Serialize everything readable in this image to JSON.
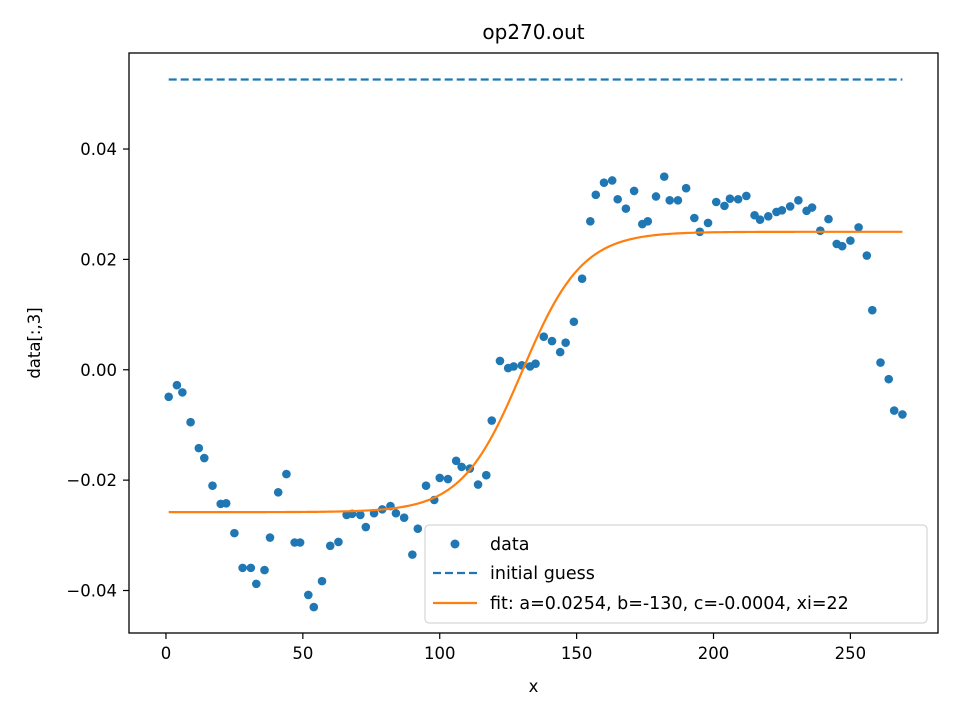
{
  "chart_data": {
    "type": "scatter",
    "title": "op270.out",
    "xlabel": "x",
    "ylabel": "data[:,3]",
    "xlim": [
      -13.5,
      282
    ],
    "ylim": [
      -0.0477,
      0.0574
    ],
    "xticks": [
      0,
      50,
      100,
      150,
      200,
      250
    ],
    "xtick_labels": [
      "0",
      "50",
      "100",
      "150",
      "200",
      "250"
    ],
    "yticks": [
      -0.04,
      -0.02,
      0.0,
      0.02,
      0.04
    ],
    "ytick_labels": [
      "−0.04",
      "−0.02",
      "0.00",
      "0.02",
      "0.04"
    ],
    "grid": false,
    "legend_position": "lower-right",
    "series": [
      {
        "name": "data",
        "kind": "scatter",
        "color": "#1f77b4",
        "x": [
          1,
          4,
          6,
          9,
          12,
          14,
          17,
          20,
          22,
          25,
          28,
          31,
          33,
          36,
          38,
          41,
          44,
          47,
          49,
          52,
          54,
          57,
          60,
          63,
          66,
          68,
          71,
          73,
          76,
          79,
          82,
          84,
          87,
          90,
          92,
          95,
          98,
          100,
          103,
          106,
          108,
          111,
          114,
          117,
          119,
          122,
          125,
          127,
          130,
          133,
          135,
          138,
          141,
          144,
          146,
          149,
          152,
          155,
          157,
          160,
          163,
          165,
          168,
          171,
          174,
          176,
          179,
          182,
          184,
          187,
          190,
          193,
          195,
          198,
          201,
          204,
          206,
          209,
          212,
          215,
          217,
          220,
          223,
          225,
          228,
          231,
          234,
          236,
          239,
          242,
          245,
          247,
          250,
          253,
          256,
          258,
          261,
          264,
          266,
          269
        ],
        "y": [
          -0.0049,
          -0.0028,
          -0.0041,
          -0.0095,
          -0.0142,
          -0.016,
          -0.021,
          -0.0243,
          -0.0242,
          -0.0296,
          -0.0359,
          -0.0359,
          -0.0388,
          -0.0363,
          -0.0304,
          -0.0222,
          -0.0189,
          -0.0313,
          -0.0313,
          -0.0408,
          -0.043,
          -0.0383,
          -0.0319,
          -0.0312,
          -0.0263,
          -0.0261,
          -0.0263,
          -0.0285,
          -0.026,
          -0.0253,
          -0.0247,
          -0.026,
          -0.0268,
          -0.0335,
          -0.0288,
          -0.021,
          -0.0236,
          -0.0196,
          -0.0198,
          -0.0165,
          -0.0176,
          -0.0179,
          -0.0208,
          -0.0191,
          -0.0092,
          0.0016,
          0.0003,
          0.0006,
          0.0008,
          0.0006,
          0.0011,
          0.006,
          0.0052,
          0.0032,
          0.0049,
          0.0087,
          0.0165,
          0.0269,
          0.0317,
          0.0339,
          0.0343,
          0.0309,
          0.0292,
          0.0324,
          0.0264,
          0.0269,
          0.0314,
          0.035,
          0.0307,
          0.0307,
          0.0329,
          0.0275,
          0.025,
          0.0266,
          0.0304,
          0.0297,
          0.031,
          0.0309,
          0.0315,
          0.028,
          0.0272,
          0.0278,
          0.0286,
          0.0289,
          0.0296,
          0.0307,
          0.0288,
          0.0294,
          0.0252,
          0.0273,
          0.0228,
          0.0224,
          0.0234,
          0.0258,
          0.0207,
          0.0108,
          0.0013,
          -0.0017,
          -0.0074,
          -0.0081
        ]
      },
      {
        "name": "initial guess",
        "kind": "line",
        "style": "dashed",
        "color": "#1f77b4",
        "x": [
          1,
          269
        ],
        "y": [
          0.0526,
          0.0526
        ]
      },
      {
        "name": "fit: a=0.0254, b=-130, c=-0.0004, xi=22",
        "kind": "line",
        "style": "solid",
        "color": "#ff7f0e",
        "params": {
          "a": 0.0254,
          "b": -130,
          "c": -0.0004,
          "xi": 22
        },
        "x_range": [
          1,
          269
        ]
      }
    ]
  }
}
